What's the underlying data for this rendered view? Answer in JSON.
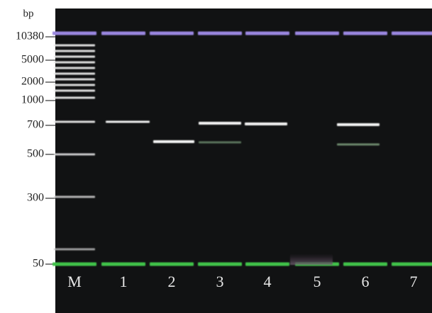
{
  "axis": {
    "unit": "bp",
    "ticks": [
      "10380",
      "5000",
      "2000",
      "1000",
      "700",
      "500",
      "300",
      "50"
    ]
  },
  "lanes": [
    "M",
    "1",
    "2",
    "3",
    "4",
    "5",
    "6",
    "7"
  ]
}
